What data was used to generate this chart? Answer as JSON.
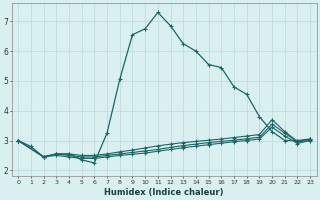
{
  "xlabel": "Humidex (Indice chaleur)",
  "background_color": "#daf0f0",
  "grid_color": "#c0dcdc",
  "line_color": "#1a6666",
  "xlim": [
    -0.5,
    23.5
  ],
  "ylim": [
    1.8,
    7.6
  ],
  "yticks": [
    2,
    3,
    4,
    5,
    6,
    7
  ],
  "xticks": [
    0,
    1,
    2,
    3,
    4,
    5,
    6,
    7,
    8,
    9,
    10,
    11,
    12,
    13,
    14,
    15,
    16,
    17,
    18,
    19,
    20,
    21,
    22,
    23
  ],
  "series1_x": [
    0,
    1,
    2,
    3,
    4,
    5,
    6,
    7,
    8,
    9,
    10,
    11,
    12,
    13,
    14,
    15,
    16,
    17,
    18,
    19,
    20,
    21,
    22,
    23
  ],
  "series1_y": [
    3.0,
    2.8,
    2.45,
    2.55,
    2.55,
    2.35,
    2.25,
    3.25,
    5.05,
    6.55,
    6.75,
    7.3,
    6.85,
    6.25,
    6.0,
    5.55,
    5.45,
    4.8,
    4.55,
    3.8,
    3.3,
    3.0,
    3.0,
    3.05
  ],
  "series2_x": [
    0,
    2,
    3,
    4,
    5,
    6,
    7,
    8,
    9,
    10,
    11,
    12,
    13,
    14,
    15,
    16,
    17,
    18,
    19,
    20,
    21,
    22,
    23
  ],
  "series2_y": [
    3.0,
    2.45,
    2.55,
    2.55,
    2.5,
    2.5,
    2.55,
    2.62,
    2.68,
    2.75,
    2.82,
    2.88,
    2.93,
    2.97,
    3.01,
    3.05,
    3.1,
    3.15,
    3.2,
    3.7,
    3.3,
    2.97,
    3.05
  ],
  "series3_x": [
    0,
    2,
    3,
    4,
    5,
    6,
    7,
    8,
    9,
    10,
    11,
    12,
    13,
    14,
    15,
    16,
    17,
    18,
    19,
    20,
    21,
    22,
    23
  ],
  "series3_y": [
    3.0,
    2.45,
    2.55,
    2.5,
    2.45,
    2.45,
    2.5,
    2.55,
    2.6,
    2.65,
    2.7,
    2.77,
    2.83,
    2.88,
    2.93,
    2.97,
    3.01,
    3.06,
    3.11,
    3.55,
    3.25,
    2.95,
    3.02
  ],
  "series4_x": [
    0,
    2,
    3,
    4,
    5,
    6,
    7,
    8,
    9,
    10,
    11,
    12,
    13,
    14,
    15,
    16,
    17,
    18,
    19,
    20,
    21,
    22,
    23
  ],
  "series4_y": [
    3.0,
    2.45,
    2.5,
    2.45,
    2.4,
    2.4,
    2.45,
    2.5,
    2.54,
    2.58,
    2.64,
    2.7,
    2.76,
    2.81,
    2.86,
    2.91,
    2.96,
    3.0,
    3.05,
    3.45,
    3.15,
    2.9,
    3.0
  ]
}
